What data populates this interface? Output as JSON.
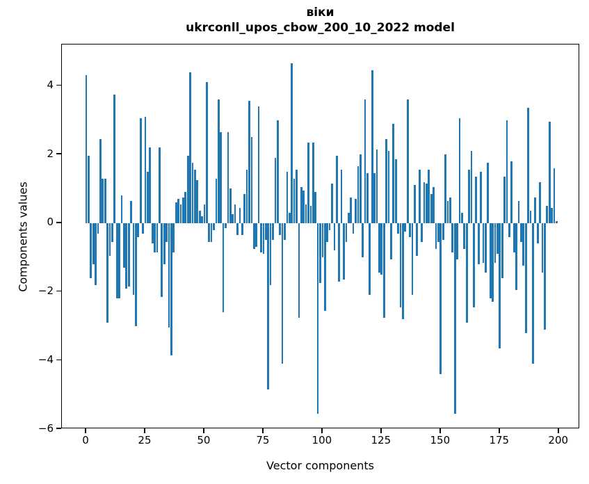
{
  "title": {
    "line1": "віки",
    "line2": "ukrconll_upos_cbow_200_10_2022 model"
  },
  "chart_data": {
    "type": "bar",
    "title": "віки — ukrconll_upos_cbow_200_10_2022 model",
    "xlabel": "Vector components",
    "ylabel": "Components values",
    "bar_color": "#1f77b4",
    "axis_color": "#000000",
    "background_color": "#ffffff",
    "grid": false,
    "legend": null,
    "xlim": [
      -10.3,
      208.9
    ],
    "ylim": [
      -6.0,
      5.2
    ],
    "xticks": [
      0,
      25,
      50,
      75,
      100,
      125,
      150,
      175,
      200
    ],
    "yticks": [
      -6,
      -4,
      -2,
      0,
      2,
      4
    ],
    "x_description": "vector component index 0..199",
    "values": [
      4.3,
      1.95,
      -1.6,
      -1.2,
      -1.8,
      -0.3,
      2.45,
      1.3,
      1.3,
      -2.9,
      -0.95,
      -0.55,
      3.75,
      -2.2,
      -2.2,
      0.8,
      -1.3,
      -1.9,
      -1.85,
      0.65,
      -2.1,
      -3.0,
      -0.4,
      3.05,
      -0.3,
      3.1,
      1.5,
      2.2,
      -0.6,
      -0.85,
      -0.85,
      2.2,
      -2.15,
      -1.2,
      -0.55,
      -3.05,
      -3.85,
      -0.85,
      0.6,
      0.7,
      0.55,
      0.75,
      0.9,
      1.95,
      4.4,
      1.75,
      1.55,
      1.25,
      0.35,
      0.2,
      0.55,
      4.1,
      -0.55,
      -0.55,
      -0.2,
      1.3,
      3.6,
      2.65,
      -2.6,
      -0.15,
      2.65,
      1.0,
      0.25,
      0.55,
      -0.35,
      0.45,
      -0.35,
      0.85,
      1.55,
      3.55,
      2.5,
      -0.75,
      -0.7,
      3.4,
      -0.85,
      -0.9,
      -0.5,
      -4.85,
      -1.8,
      -0.5,
      1.9,
      3.0,
      -0.35,
      -4.1,
      -0.5,
      1.5,
      0.3,
      4.65,
      1.3,
      1.55,
      -2.75,
      1.05,
      0.95,
      0.55,
      2.35,
      0.5,
      2.35,
      0.9,
      -5.55,
      -1.75,
      -1.0,
      -2.55,
      -0.55,
      -0.2,
      1.15,
      -0.8,
      1.95,
      -1.7,
      1.55,
      -1.65,
      -0.55,
      0.3,
      0.75,
      -0.3,
      0.7,
      1.65,
      2.0,
      -1.0,
      3.6,
      1.45,
      -2.1,
      4.45,
      1.45,
      2.15,
      -1.45,
      -1.5,
      -2.75,
      2.45,
      2.1,
      -1.05,
      2.9,
      1.85,
      -0.3,
      -2.45,
      -2.8,
      -0.25,
      3.6,
      -0.4,
      -2.1,
      1.1,
      -0.95,
      1.55,
      -0.55,
      1.2,
      1.15,
      1.55,
      0.85,
      1.05,
      -0.75,
      -0.55,
      -4.4,
      -0.5,
      2.0,
      0.65,
      0.75,
      -0.85,
      -5.55,
      -1.05,
      3.05,
      0.3,
      -0.75,
      -2.9,
      1.55,
      2.1,
      -2.45,
      1.35,
      -1.2,
      1.5,
      -1.15,
      -1.45,
      1.75,
      -2.2,
      -2.3,
      -1.15,
      -0.9,
      -3.65,
      -1.6,
      1.35,
      3.0,
      -0.4,
      1.8,
      -0.85,
      -1.95,
      0.65,
      -0.55,
      -1.25,
      -3.2,
      3.35,
      0.35,
      -4.1,
      0.75,
      -0.6,
      1.2,
      -1.45,
      -3.1,
      0.5,
      2.95,
      0.45,
      1.6,
      0.05
    ]
  }
}
